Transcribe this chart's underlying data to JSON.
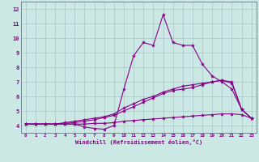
{
  "xlabel": "Windchill (Refroidissement éolien,°C)",
  "background_color": "#cce8e4",
  "grid_color": "#aacccc",
  "line_color": "#880088",
  "xlim": [
    -0.5,
    23.5
  ],
  "ylim": [
    3.5,
    12.5
  ],
  "xticks": [
    0,
    1,
    2,
    3,
    4,
    5,
    6,
    7,
    8,
    9,
    10,
    11,
    12,
    13,
    14,
    15,
    16,
    17,
    18,
    19,
    20,
    21,
    22,
    23
  ],
  "yticks": [
    4,
    5,
    6,
    7,
    8,
    9,
    10,
    11,
    12
  ],
  "series": [
    [
      4.1,
      4.1,
      4.1,
      4.1,
      4.1,
      4.1,
      3.9,
      3.8,
      3.75,
      4.0,
      6.5,
      8.8,
      9.7,
      9.5,
      11.6,
      9.7,
      9.5,
      9.5,
      8.2,
      7.4,
      7.0,
      6.5,
      5.1,
      4.5
    ],
    [
      4.1,
      4.1,
      4.1,
      4.1,
      4.2,
      4.3,
      4.4,
      4.5,
      4.6,
      4.8,
      5.2,
      5.5,
      5.8,
      6.0,
      6.3,
      6.5,
      6.7,
      6.8,
      6.9,
      7.0,
      7.1,
      7.0,
      5.1,
      4.5
    ],
    [
      4.1,
      4.1,
      4.1,
      4.1,
      4.15,
      4.2,
      4.3,
      4.4,
      4.55,
      4.7,
      5.0,
      5.3,
      5.6,
      5.9,
      6.2,
      6.4,
      6.5,
      6.6,
      6.8,
      7.0,
      7.1,
      6.9,
      5.1,
      4.5
    ],
    [
      4.1,
      4.1,
      4.1,
      4.1,
      4.1,
      4.1,
      4.1,
      4.15,
      4.15,
      4.2,
      4.3,
      4.35,
      4.4,
      4.45,
      4.5,
      4.55,
      4.6,
      4.65,
      4.7,
      4.75,
      4.8,
      4.8,
      4.75,
      4.5
    ]
  ]
}
